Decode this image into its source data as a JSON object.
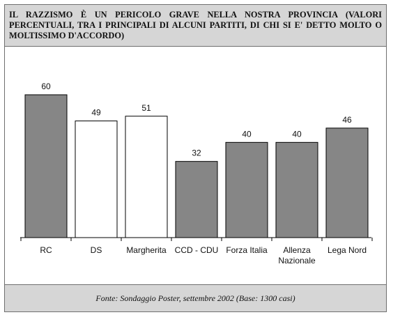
{
  "title": "IL RAZZISMO È UN PERICOLO GRAVE NELLA NOSTRA PROVINCIA (VALORI PERCENTUALI, TRA I PRINCIPALI DI ALCUNI PARTITI, DI CHI SI E' DETTO MOLTO O MOLTISSIMO D'ACCORDO)",
  "footer": "Fonte: Sondaggio Poster, settembre 2002 (Base: 1300 casi)",
  "colors": {
    "bar_filled": "#868686",
    "bar_empty": "#ffffff",
    "bar_stroke": "#000000",
    "panel_bg": "#d6d6d6"
  },
  "chart_data": {
    "type": "bar",
    "categories": [
      [
        "RC"
      ],
      [
        "DS"
      ],
      [
        "Margherita"
      ],
      [
        "CCD - CDU"
      ],
      [
        "Forza Italia"
      ],
      [
        "Allenza",
        "Nazionale"
      ],
      [
        "Lega Nord"
      ]
    ],
    "values": [
      60,
      49,
      51,
      32,
      40,
      40,
      46
    ],
    "bar_style": [
      "filled",
      "empty",
      "empty",
      "filled",
      "filled",
      "filled",
      "filled"
    ],
    "data_labels": [
      "60",
      "49",
      "51",
      "32",
      "40",
      "40",
      "46"
    ],
    "ylim": [
      0,
      60
    ],
    "grid": false,
    "legend": "none"
  }
}
